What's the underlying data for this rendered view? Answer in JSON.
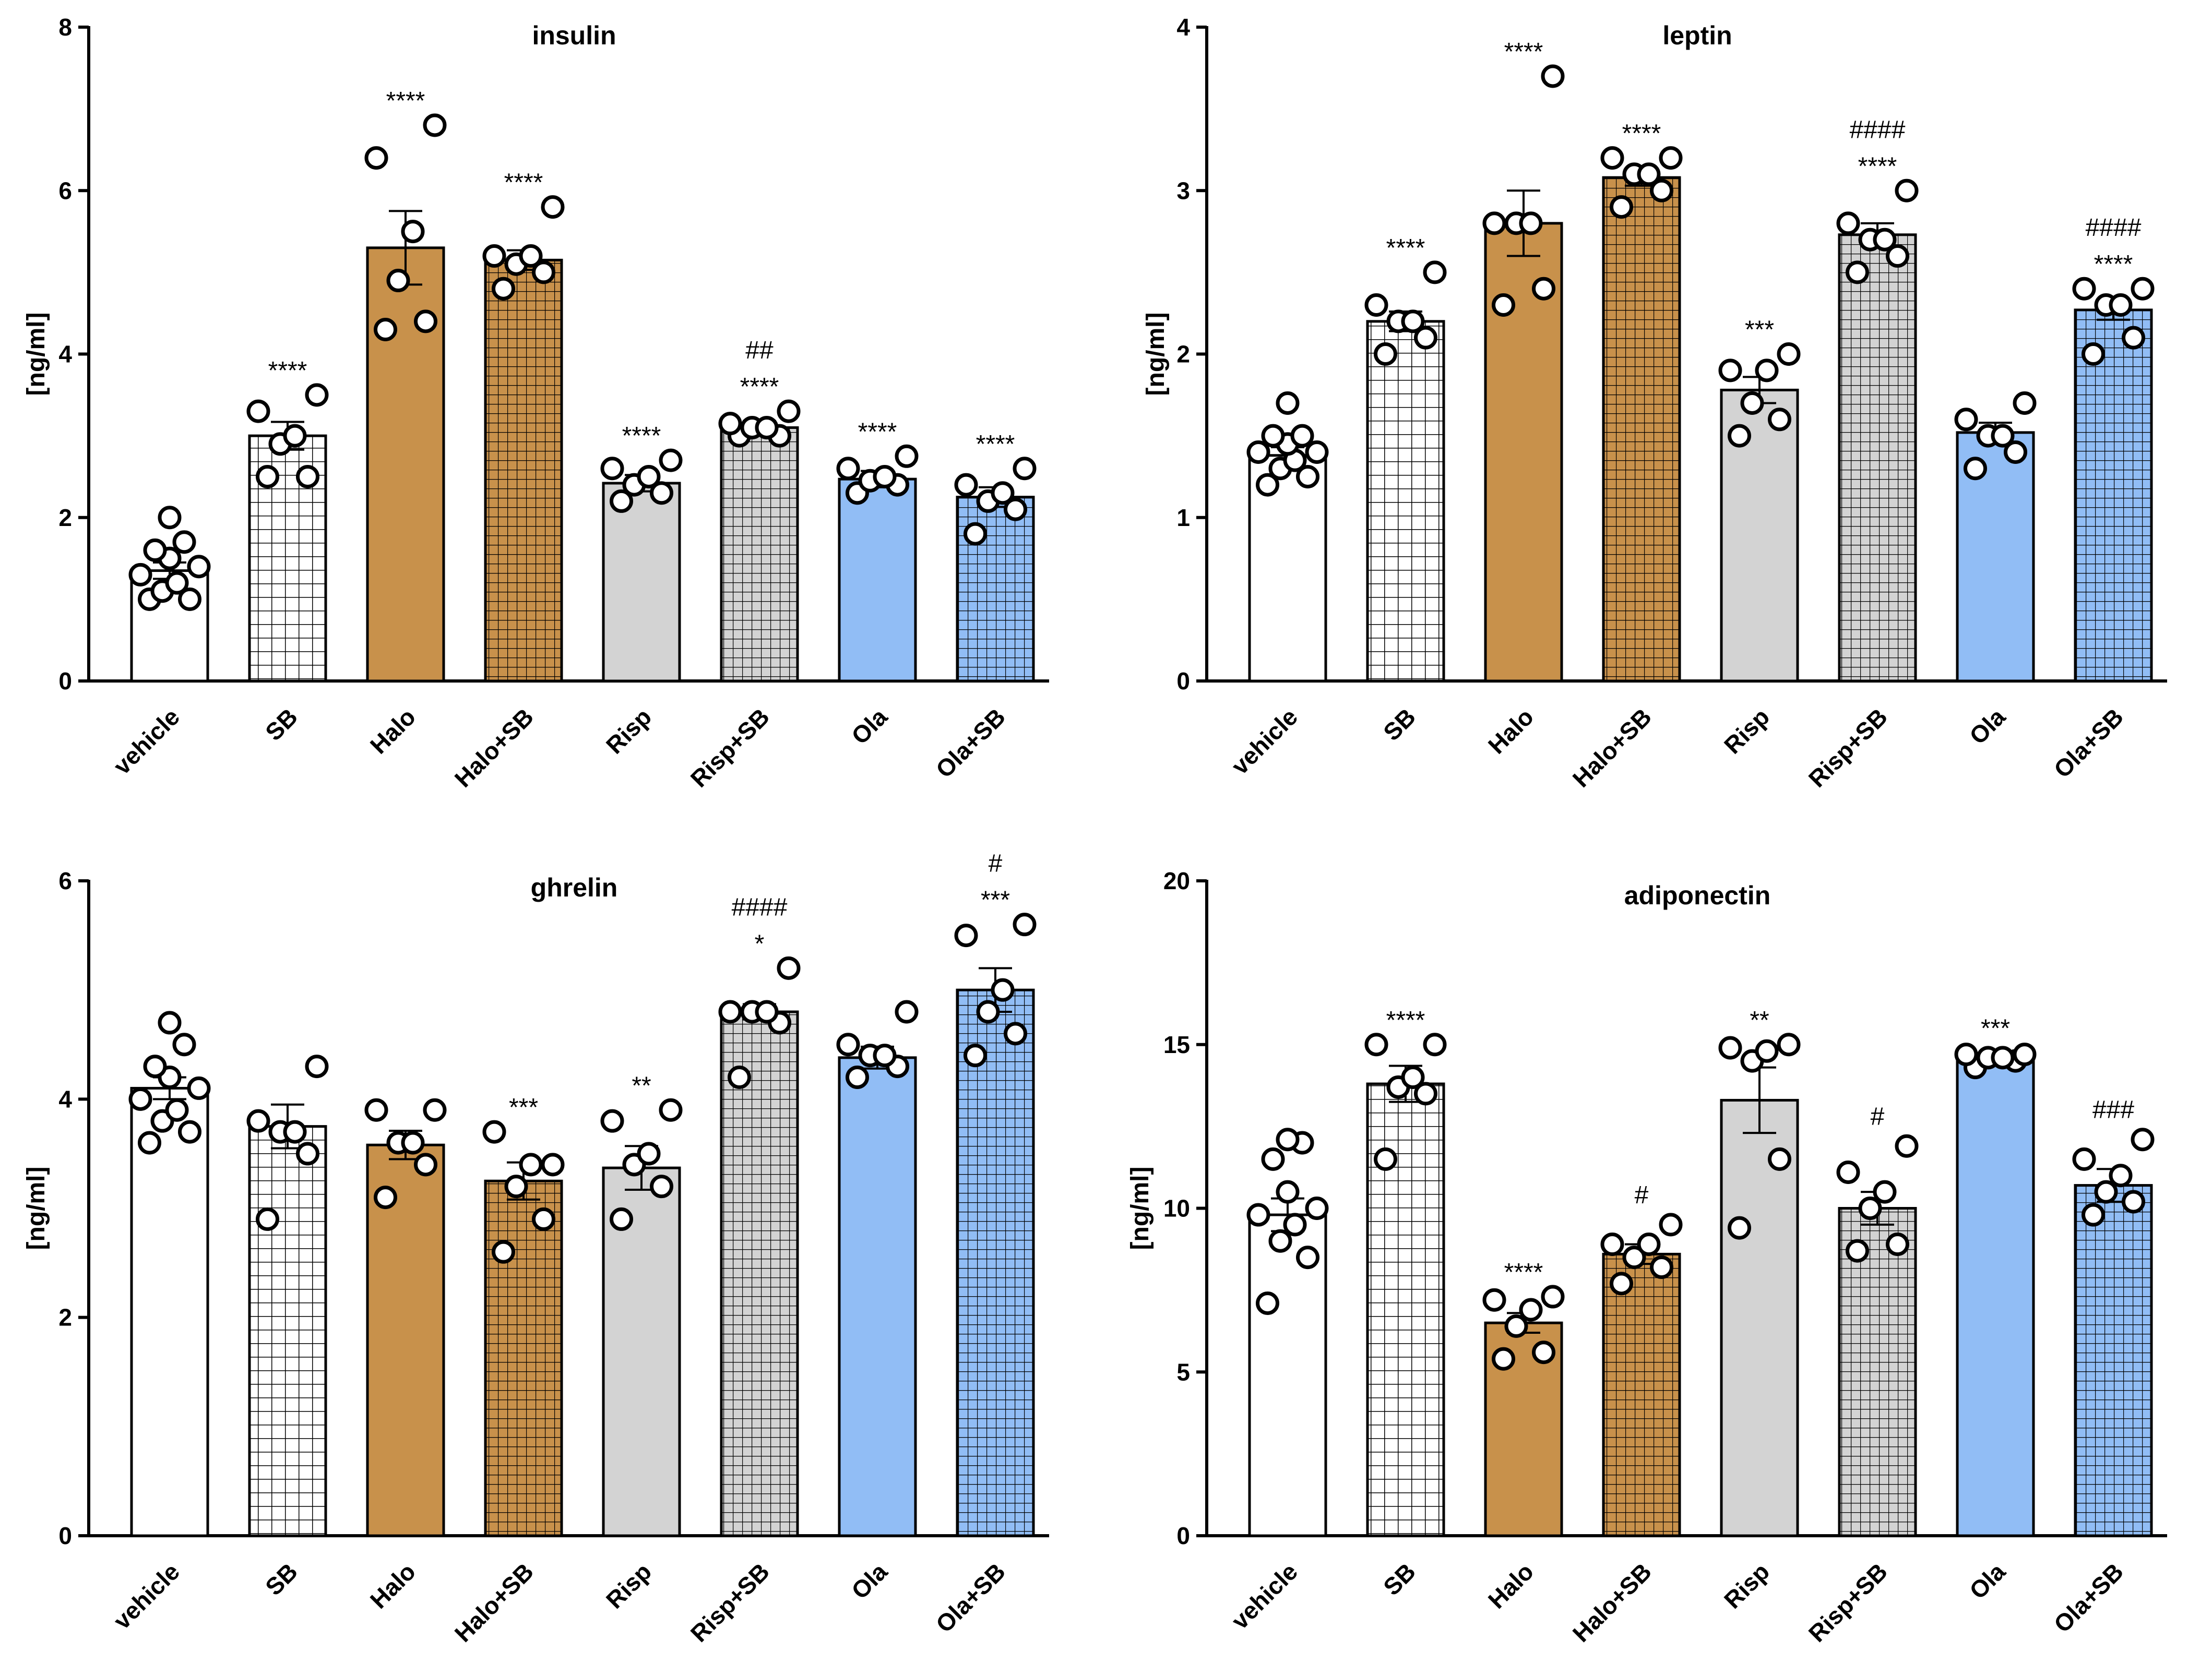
{
  "colors": {
    "vehicle": "#ffffff",
    "SB": "#ffffff",
    "Halo": "#c8914b",
    "Risp": "#d3d3d3",
    "Ola": "#91bdf5"
  },
  "chart_data": [
    {
      "type": "bar",
      "title": "insulin",
      "ylabel": "[ng/ml]",
      "xlabel": "",
      "ylim": [
        0,
        8
      ],
      "yticks": [
        0,
        2,
        4,
        6,
        8
      ],
      "categories": [
        "vehicle",
        "SB",
        "Halo",
        "Halo+SB",
        "Risp",
        "Risp+SB",
        "Ola",
        "Ola+SB"
      ],
      "values": [
        1.35,
        3.0,
        5.3,
        5.15,
        2.42,
        3.1,
        2.47,
        2.25
      ],
      "errors": [
        0.1,
        0.17,
        0.45,
        0.12,
        0.1,
        0.08,
        0.1,
        0.12
      ],
      "points": [
        [
          1.0,
          1.0,
          1.1,
          1.2,
          1.3,
          1.4,
          1.5,
          1.6,
          1.7,
          2.0
        ],
        [
          2.5,
          2.5,
          2.9,
          3.0,
          3.3,
          3.5
        ],
        [
          4.3,
          4.4,
          4.9,
          5.5,
          6.4,
          6.8
        ],
        [
          4.8,
          5.0,
          5.1,
          5.2,
          5.2,
          5.8
        ],
        [
          2.2,
          2.3,
          2.4,
          2.5,
          2.6,
          2.7
        ],
        [
          3.0,
          3.0,
          3.1,
          3.1,
          3.15,
          3.3
        ],
        [
          2.3,
          2.4,
          2.45,
          2.5,
          2.6,
          2.75
        ],
        [
          1.8,
          2.1,
          2.2,
          2.3,
          2.4,
          2.6
        ]
      ],
      "annotations": [
        {
          "category": "SB",
          "lines": [
            "****"
          ]
        },
        {
          "category": "Halo",
          "lines": [
            "****"
          ]
        },
        {
          "category": "Halo+SB",
          "lines": [
            "****"
          ]
        },
        {
          "category": "Risp",
          "lines": [
            "****"
          ]
        },
        {
          "category": "Risp+SB",
          "lines": [
            "##",
            "****"
          ]
        },
        {
          "category": "Ola",
          "lines": [
            "****"
          ]
        },
        {
          "category": "Ola+SB",
          "lines": [
            "****"
          ]
        }
      ]
    },
    {
      "type": "bar",
      "title": "leptin",
      "ylabel": "[ng/ml]",
      "xlabel": "",
      "ylim": [
        0,
        4
      ],
      "yticks": [
        0,
        1,
        2,
        3,
        4
      ],
      "categories": [
        "vehicle",
        "SB",
        "Halo",
        "Halo+SB",
        "Risp",
        "Risp+SB",
        "Ola",
        "Ola+SB"
      ],
      "values": [
        1.38,
        2.2,
        2.8,
        3.08,
        1.78,
        2.73,
        1.52,
        2.27
      ],
      "errors": [
        0.05,
        0.06,
        0.2,
        0.05,
        0.08,
        0.07,
        0.06,
        0.06
      ],
      "points": [
        [
          1.2,
          1.25,
          1.3,
          1.35,
          1.4,
          1.4,
          1.45,
          1.5,
          1.5,
          1.7
        ],
        [
          2.0,
          2.1,
          2.2,
          2.2,
          2.3,
          2.5
        ],
        [
          2.3,
          2.4,
          2.8,
          2.8,
          2.8,
          3.7
        ],
        [
          2.9,
          3.0,
          3.1,
          3.1,
          3.2,
          3.2
        ],
        [
          1.5,
          1.6,
          1.7,
          1.9,
          1.9,
          2.0
        ],
        [
          2.5,
          2.6,
          2.7,
          2.7,
          2.8,
          3.0
        ],
        [
          1.3,
          1.4,
          1.5,
          1.5,
          1.6,
          1.7
        ],
        [
          2.0,
          2.1,
          2.3,
          2.3,
          2.4,
          2.4
        ]
      ],
      "annotations": [
        {
          "category": "SB",
          "lines": [
            "****"
          ]
        },
        {
          "category": "Halo",
          "lines": [
            "****"
          ]
        },
        {
          "category": "Halo+SB",
          "lines": [
            "****"
          ]
        },
        {
          "category": "Risp",
          "lines": [
            "***"
          ]
        },
        {
          "category": "Risp+SB",
          "lines": [
            "####",
            "****"
          ]
        },
        {
          "category": "Ola+SB",
          "lines": [
            "####",
            "****"
          ]
        }
      ]
    },
    {
      "type": "bar",
      "title": "ghrelin",
      "ylabel": "[ng/ml]",
      "xlabel": "",
      "ylim": [
        0,
        6
      ],
      "yticks": [
        0,
        2,
        4,
        6
      ],
      "categories": [
        "vehicle",
        "SB",
        "Halo",
        "Halo+SB",
        "Risp",
        "Risp+SB",
        "Ola",
        "Ola+SB"
      ],
      "values": [
        4.1,
        3.75,
        3.58,
        3.25,
        3.37,
        4.8,
        4.38,
        5.0
      ],
      "errors": [
        0.1,
        0.2,
        0.13,
        0.17,
        0.2,
        0.07,
        0.1,
        0.2
      ],
      "points": [
        [
          3.6,
          3.7,
          3.8,
          3.9,
          4.0,
          4.1,
          4.2,
          4.3,
          4.5,
          4.7
        ],
        [
          2.9,
          3.5,
          3.7,
          3.7,
          3.8,
          4.3
        ],
        [
          3.1,
          3.4,
          3.6,
          3.6,
          3.9,
          3.9
        ],
        [
          2.6,
          2.9,
          3.2,
          3.4,
          3.7,
          3.4
        ],
        [
          2.9,
          3.2,
          3.4,
          3.5,
          3.8,
          3.9
        ],
        [
          4.2,
          4.7,
          4.8,
          4.8,
          4.8,
          5.2
        ],
        [
          4.2,
          4.3,
          4.4,
          4.4,
          4.5,
          4.8
        ],
        [
          4.4,
          4.6,
          4.8,
          5.0,
          5.5,
          5.6
        ]
      ],
      "annotations": [
        {
          "category": "Halo+SB",
          "lines": [
            "***"
          ]
        },
        {
          "category": "Risp",
          "lines": [
            "**"
          ]
        },
        {
          "category": "Risp+SB",
          "lines": [
            "####",
            "*"
          ]
        },
        {
          "category": "Ola+SB",
          "lines": [
            "#",
            "***"
          ]
        }
      ]
    },
    {
      "type": "bar",
      "title": "adiponectin",
      "ylabel": "[ng/ml]",
      "xlabel": "",
      "ylim": [
        0,
        20
      ],
      "yticks": [
        0,
        5,
        10,
        15,
        20
      ],
      "categories": [
        "vehicle",
        "SB",
        "Halo",
        "Halo+SB",
        "Risp",
        "Risp+SB",
        "Ola",
        "Ola+SB"
      ],
      "values": [
        9.8,
        13.8,
        6.5,
        8.6,
        13.3,
        10.0,
        14.55,
        10.7
      ],
      "errors": [
        0.5,
        0.55,
        0.3,
        0.3,
        1.0,
        0.5,
        0.2,
        0.5
      ],
      "points": [
        [
          7.1,
          8.5,
          9.0,
          9.5,
          9.8,
          10.0,
          10.5,
          11.5,
          12.0,
          12.1
        ],
        [
          11.5,
          13.5,
          13.7,
          14.0,
          15.0,
          15.0
        ],
        [
          5.4,
          5.6,
          6.4,
          6.9,
          7.2,
          7.3
        ],
        [
          7.7,
          8.2,
          8.5,
          8.9,
          8.9,
          9.5
        ],
        [
          9.4,
          11.5,
          14.5,
          14.8,
          14.9,
          15.0
        ],
        [
          8.7,
          8.9,
          10.0,
          10.5,
          11.1,
          11.9
        ],
        [
          14.3,
          14.5,
          14.6,
          14.6,
          14.7,
          14.7
        ],
        [
          9.8,
          10.2,
          10.5,
          11.0,
          11.5,
          12.1
        ]
      ],
      "annotations": [
        {
          "category": "SB",
          "lines": [
            "****"
          ]
        },
        {
          "category": "Halo",
          "lines": [
            "****"
          ]
        },
        {
          "category": "Halo+SB",
          "lines": [
            "#"
          ]
        },
        {
          "category": "Risp",
          "lines": [
            "**"
          ]
        },
        {
          "category": "Risp+SB",
          "lines": [
            "#"
          ]
        },
        {
          "category": "Ola",
          "lines": [
            "***"
          ]
        },
        {
          "category": "Ola+SB",
          "lines": [
            "###"
          ]
        }
      ]
    }
  ]
}
